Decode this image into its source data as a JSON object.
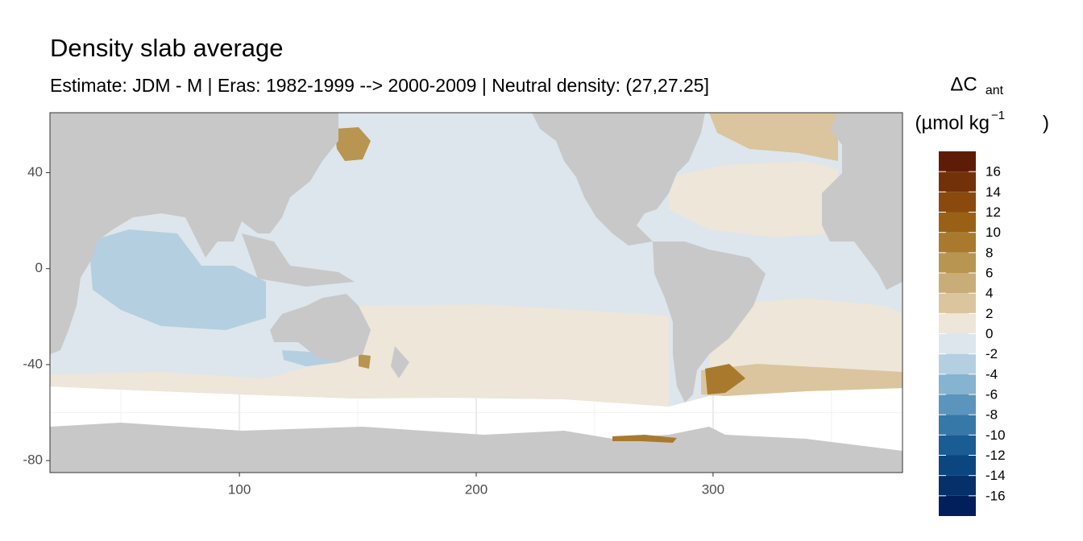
{
  "chart_data": {
    "type": "map",
    "title": "Density slab average",
    "subtitle": "Estimate: JDM - M | Eras: 1982-1999 --> 2000-2009 | Neutral density: (27,27.25]",
    "xlim": [
      20,
      380
    ],
    "xticks": [
      100,
      200,
      300
    ],
    "ylim": [
      -85,
      65
    ],
    "yticks": [
      40,
      0,
      -40,
      -80
    ],
    "grid": true,
    "legend": {
      "title": [
        "ΔC",
        "ant"
      ],
      "unit": [
        "(µmol kg",
        "−1",
        ")"
      ],
      "breaks": [
        18,
        16,
        14,
        12,
        10,
        8,
        6,
        4,
        2,
        0,
        -2,
        -4,
        -6,
        -8,
        -10,
        -12,
        -14,
        -16,
        -18
      ],
      "colors": [
        "#5e1c06",
        "#73310a",
        "#8a4a0d",
        "#9a6116",
        "#a97a2d",
        "#b89550",
        "#c9ad78",
        "#dac59e",
        "#ede6d9",
        "#dde6ec",
        "#b4cfe0",
        "#86b3cf",
        "#5b95bd",
        "#3678a8",
        "#1a5c94",
        "#0b4680",
        "#05306a",
        "#021f5c"
      ],
      "ticks": [
        16,
        14,
        12,
        10,
        8,
        6,
        4,
        2,
        0,
        -2,
        -4,
        -6,
        -8,
        -10,
        -12,
        -14,
        -16
      ]
    }
  }
}
